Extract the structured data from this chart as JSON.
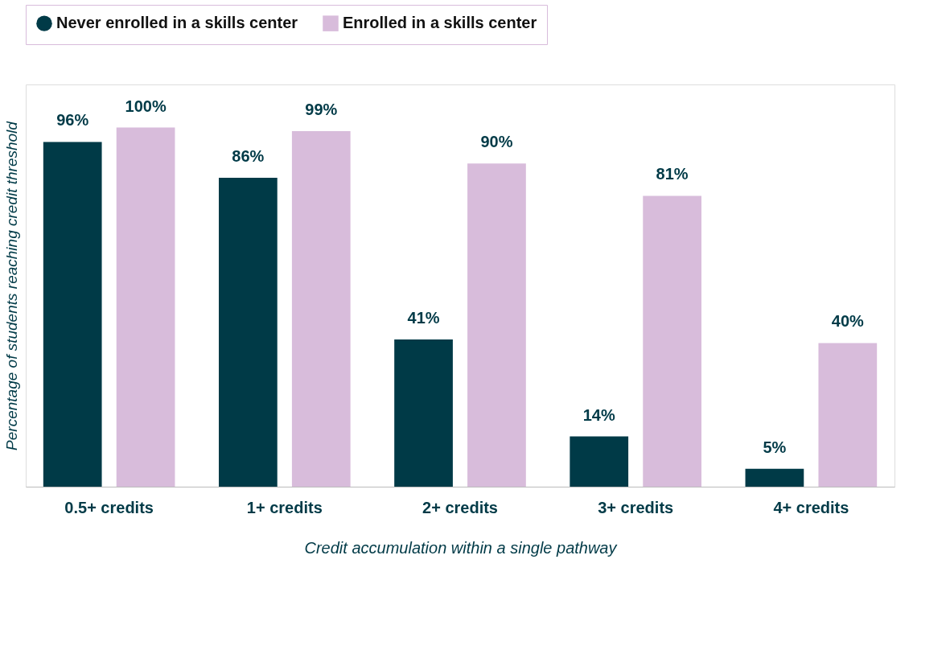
{
  "chart_data": {
    "type": "bar",
    "xlabel": "Credit accumulation within a single pathway",
    "ylabel": "Percentage of students reaching credit threshold",
    "categories": [
      "0.5+ credits",
      "1+ credits",
      "2+ credits",
      "3+ credits",
      "4+ credits"
    ],
    "series": [
      {
        "name": "Never enrolled in a skills center",
        "color": "#003a47",
        "marker": "circle",
        "values": [
          96,
          86,
          41,
          14,
          5
        ],
        "value_labels": [
          "96%",
          "86%",
          "41%",
          "14%",
          "5%"
        ]
      },
      {
        "name": "Enrolled in a skills center",
        "color": "#d8bcdb",
        "marker": "square",
        "values": [
          100,
          99,
          90,
          81,
          40
        ],
        "value_labels": [
          "100%",
          "99%",
          "90%",
          "81%",
          "40%"
        ]
      }
    ],
    "legend": "top left",
    "grid": false,
    "tick_labels": "x"
  }
}
